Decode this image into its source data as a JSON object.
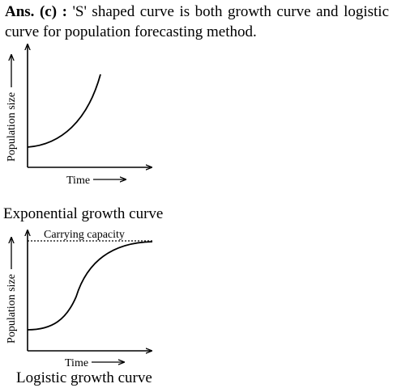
{
  "answer": {
    "prefix": "Ans. (c) :",
    "text": "'S' shaped curve is both growth curve and logistic curve for population forecasting method."
  },
  "exponential": {
    "ylabel": "Population size",
    "xlabel": "Time",
    "caption": "Exponential growth curve"
  },
  "logistic": {
    "ylabel": "Population size",
    "xlabel": "Time",
    "capacity_label": "Carrying capacity",
    "caption": "Logistic growth curve"
  }
}
